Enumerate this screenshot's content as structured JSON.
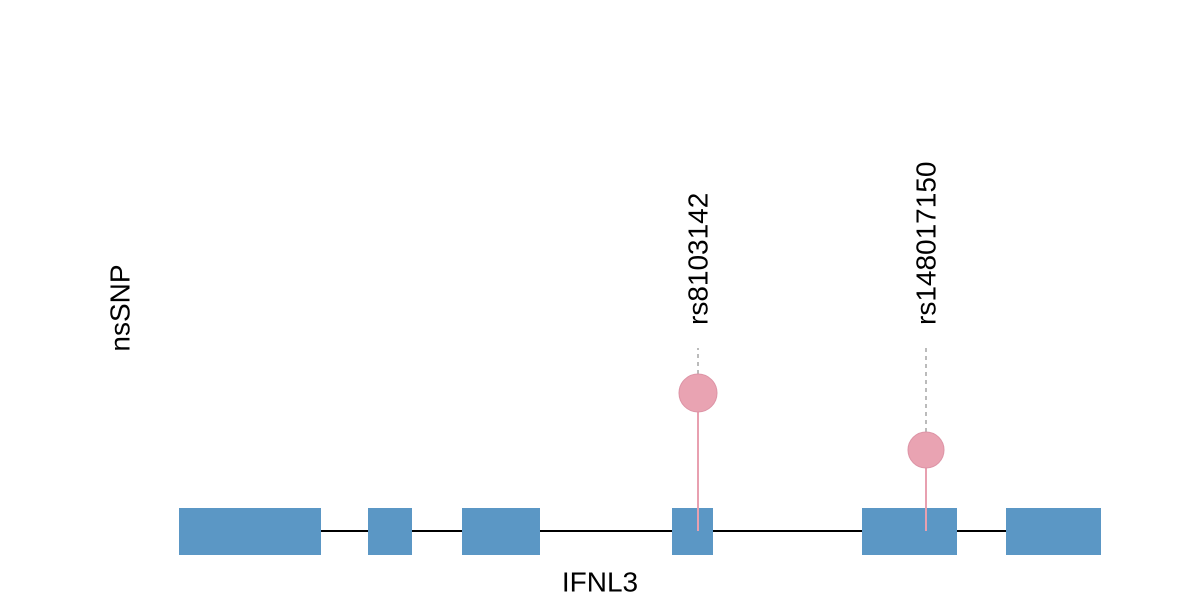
{
  "track": {
    "label": "nsSNP"
  },
  "gene": {
    "label": "IFNL3"
  },
  "snps": [
    {
      "label": "rs8103142"
    },
    {
      "label": "rs148017150"
    }
  ]
}
